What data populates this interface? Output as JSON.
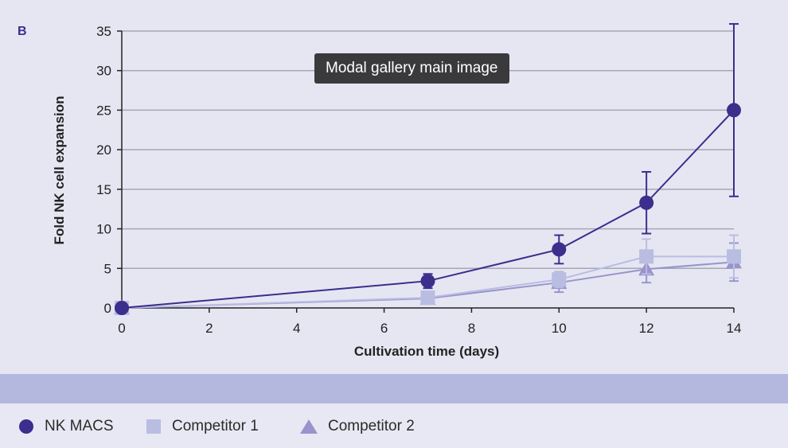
{
  "panel_label": "B",
  "tooltip": "Modal gallery main image",
  "colors": {
    "nk_macs": "#3b2e8c",
    "competitor1": "#b9bde2",
    "competitor2": "#9a93cb",
    "axis": "#222222",
    "grid": "#a6a6b4"
  },
  "legend": [
    {
      "label": "NK MACS",
      "marker": "circle",
      "color": "#3b2e8c"
    },
    {
      "label": "Competitor 1",
      "marker": "square",
      "color": "#b9bde2"
    },
    {
      "label": "Competitor 2",
      "marker": "triangle",
      "color": "#9a93cb"
    }
  ],
  "chart_data": {
    "type": "line",
    "xlabel": "Cultivation time (days)",
    "ylabel": "Fold NK cell expansion",
    "xlim": [
      0,
      14
    ],
    "ylim": [
      0,
      35
    ],
    "xticks": [
      0,
      2,
      4,
      6,
      8,
      10,
      12,
      14
    ],
    "yticks": [
      0,
      5,
      10,
      15,
      20,
      25,
      30,
      35
    ],
    "grid": "horizontal",
    "legend_position": "bottom",
    "series": [
      {
        "name": "NK MACS",
        "marker": "circle",
        "color": "#3b2e8c",
        "x": [
          0,
          7,
          10,
          12,
          14
        ],
        "y": [
          0,
          3.4,
          7.4,
          13.3,
          25
        ],
        "err": [
          0,
          0.9,
          1.8,
          3.9,
          10.9
        ]
      },
      {
        "name": "Competitor 1",
        "marker": "square",
        "color": "#b9bde2",
        "x": [
          0,
          7,
          10,
          12,
          14
        ],
        "y": [
          0,
          1.3,
          3.6,
          6.5,
          6.5
        ],
        "err": [
          0,
          0.4,
          1.0,
          2.2,
          2.7
        ]
      },
      {
        "name": "Competitor 2",
        "marker": "triangle",
        "color": "#9a93cb",
        "x": [
          0,
          7,
          10,
          12,
          14
        ],
        "y": [
          0,
          1.2,
          3.2,
          4.9,
          5.8
        ],
        "err": [
          0,
          0.3,
          1.2,
          1.7,
          2.4
        ]
      }
    ]
  }
}
